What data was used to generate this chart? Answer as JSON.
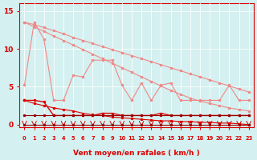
{
  "x": [
    0,
    1,
    2,
    3,
    4,
    5,
    6,
    7,
    8,
    9,
    10,
    11,
    12,
    13,
    14,
    15,
    16,
    17,
    18,
    19,
    20,
    21,
    22,
    23
  ],
  "line_jagged_y": [
    5.2,
    13.5,
    11.3,
    3.2,
    3.2,
    6.5,
    6.3,
    8.5,
    8.5,
    8.5,
    5.2,
    3.2,
    5.5,
    3.2,
    5.2,
    5.5,
    3.2,
    3.2,
    3.2,
    3.2,
    3.2,
    5.2,
    3.2,
    3.2
  ],
  "line_upper1_y": [
    13.5,
    13.2,
    12.8,
    12.4,
    12.0,
    11.5,
    11.1,
    10.7,
    10.3,
    9.9,
    9.5,
    9.1,
    8.7,
    8.3,
    7.9,
    7.5,
    7.1,
    6.7,
    6.3,
    5.9,
    5.5,
    5.1,
    4.7,
    4.3
  ],
  "line_upper2_y": [
    13.5,
    12.9,
    12.3,
    11.7,
    11.1,
    10.5,
    9.9,
    9.3,
    8.7,
    8.1,
    7.5,
    6.9,
    6.3,
    5.7,
    5.1,
    4.5,
    4.0,
    3.5,
    3.1,
    2.8,
    2.5,
    2.2,
    2.0,
    1.8
  ],
  "line_mid1_y": [
    3.2,
    3.2,
    3.0,
    1.2,
    1.2,
    1.2,
    1.2,
    1.2,
    1.5,
    1.5,
    1.2,
    1.2,
    1.2,
    1.2,
    1.5,
    1.2,
    1.2,
    1.2,
    1.2,
    1.2,
    1.2,
    1.2,
    1.2,
    1.2
  ],
  "line_mid2_y": [
    3.2,
    2.8,
    2.5,
    2.2,
    2.0,
    1.8,
    1.5,
    1.3,
    1.2,
    1.0,
    0.9,
    0.8,
    0.7,
    0.6,
    0.5,
    0.5,
    0.4,
    0.4,
    0.3,
    0.3,
    0.2,
    0.2,
    0.1,
    0.0
  ],
  "line_low_y": [
    1.2,
    1.2,
    1.2,
    1.2,
    1.2,
    1.2,
    1.2,
    1.2,
    1.2,
    1.2,
    1.2,
    1.2,
    1.2,
    1.2,
    1.2,
    1.2,
    1.2,
    1.2,
    1.2,
    1.2,
    1.2,
    1.2,
    1.2,
    1.2
  ],
  "line_zero_y": [
    0.0,
    0.0,
    0.0,
    0.0,
    0.0,
    0.0,
    0.0,
    0.0,
    0.0,
    0.0,
    0.0,
    0.0,
    0.0,
    0.0,
    0.0,
    0.0,
    0.0,
    0.0,
    0.0,
    0.0,
    0.0,
    0.0,
    0.0,
    0.0
  ],
  "bg_color": "#d4f0f0",
  "grid_color": "#aadddd",
  "xlabel": "Vent moyen/en rafales ( km/h )",
  "ylim": [
    -0.5,
    16
  ],
  "yticks": [
    0,
    5,
    10,
    15
  ],
  "color_light": "#f08888",
  "color_dark": "#dd0000",
  "color_darkest": "#990000",
  "figsize": [
    3.2,
    2.0
  ],
  "dpi": 100
}
